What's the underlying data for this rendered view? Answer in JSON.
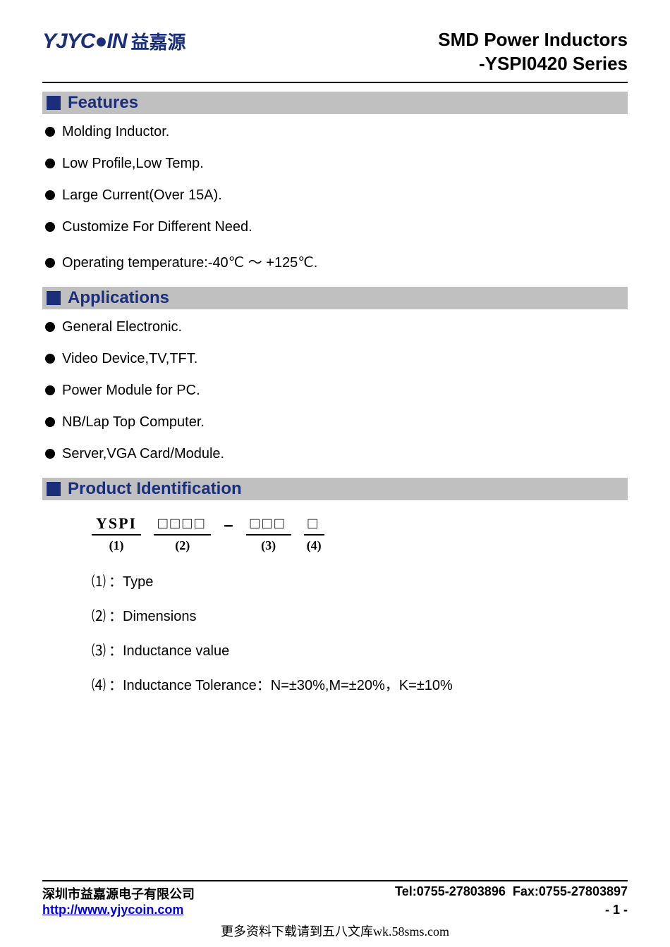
{
  "header": {
    "logo_en": "YJYC●IN",
    "logo_cn": "益嘉源",
    "title_line1": "SMD Power Inductors",
    "title_line2": "-YSPI0420 Series"
  },
  "sections": {
    "features": {
      "title": "Features",
      "items": [
        "Molding Inductor.",
        "Low Profile,Low Temp.",
        "Large Current(Over 15A).",
        "Customize For Different Need.",
        "Operating temperature:-40℃ ～ +125℃."
      ]
    },
    "applications": {
      "title": "Applications",
      "items": [
        "General Electronic.",
        "Video Device,TV,TFT.",
        "Power Module for PC.",
        "NB/Lap Top Computer.",
        "Server,VGA Card/Module."
      ]
    },
    "product_id": {
      "title": "Product Identification",
      "segments": [
        {
          "top": "YSPI",
          "bot": "(1)"
        },
        {
          "top": "□□□□",
          "bot": "(2)"
        },
        {
          "top": "□□□",
          "bot": "(3)"
        },
        {
          "top": "□",
          "bot": "(4)"
        }
      ],
      "legend": [
        {
          "num": "⑴",
          "text": "：Type"
        },
        {
          "num": "⑵",
          "text": "：Dimensions"
        },
        {
          "num": "⑶",
          "text": "：Inductance value"
        },
        {
          "num": "⑷",
          "text": "：Inductance Tolerance：N=±30%,M=±20%，K=±10%"
        }
      ]
    }
  },
  "footer": {
    "company": "深圳市益嘉源电子有限公司",
    "tel": "Tel:0755-27803896",
    "fax": "Fax:0755-27803897",
    "url": "http://www.yjycoin.com",
    "page": "- 1 -"
  },
  "watermark": "更多资料下载请到五八文库wk.58sms.com",
  "colors": {
    "brand": "#1a2e7a",
    "section_bg": "#c0c0c0",
    "link": "#0000ee"
  }
}
